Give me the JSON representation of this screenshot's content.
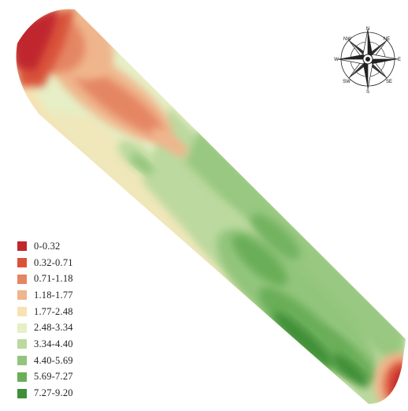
{
  "legend": {
    "items": [
      {
        "label": "0-0.32",
        "color": "#c0272d"
      },
      {
        "label": "0.32-0.71",
        "color": "#d9533b"
      },
      {
        "label": "0.71-1.18",
        "color": "#e58663"
      },
      {
        "label": "1.18-1.77",
        "color": "#efb58c"
      },
      {
        "label": "1.77-2.48",
        "color": "#f6e2b3"
      },
      {
        "label": "2.48-3.34",
        "color": "#e6efc6"
      },
      {
        "label": "3.34-4.40",
        "color": "#bcd99f"
      },
      {
        "label": "4.40-5.69",
        "color": "#92c57c"
      },
      {
        "label": "5.69-7.27",
        "color": "#6aae58"
      },
      {
        "label": "7.27-9.20",
        "color": "#3f8f38"
      }
    ]
  },
  "compass": {
    "icon": "compass-rose-icon",
    "labels": {
      "n": "N",
      "s": "S",
      "e": "E",
      "w": "W",
      "ne": "NE",
      "nw": "NW",
      "se": "SE",
      "sw": "SW"
    }
  }
}
